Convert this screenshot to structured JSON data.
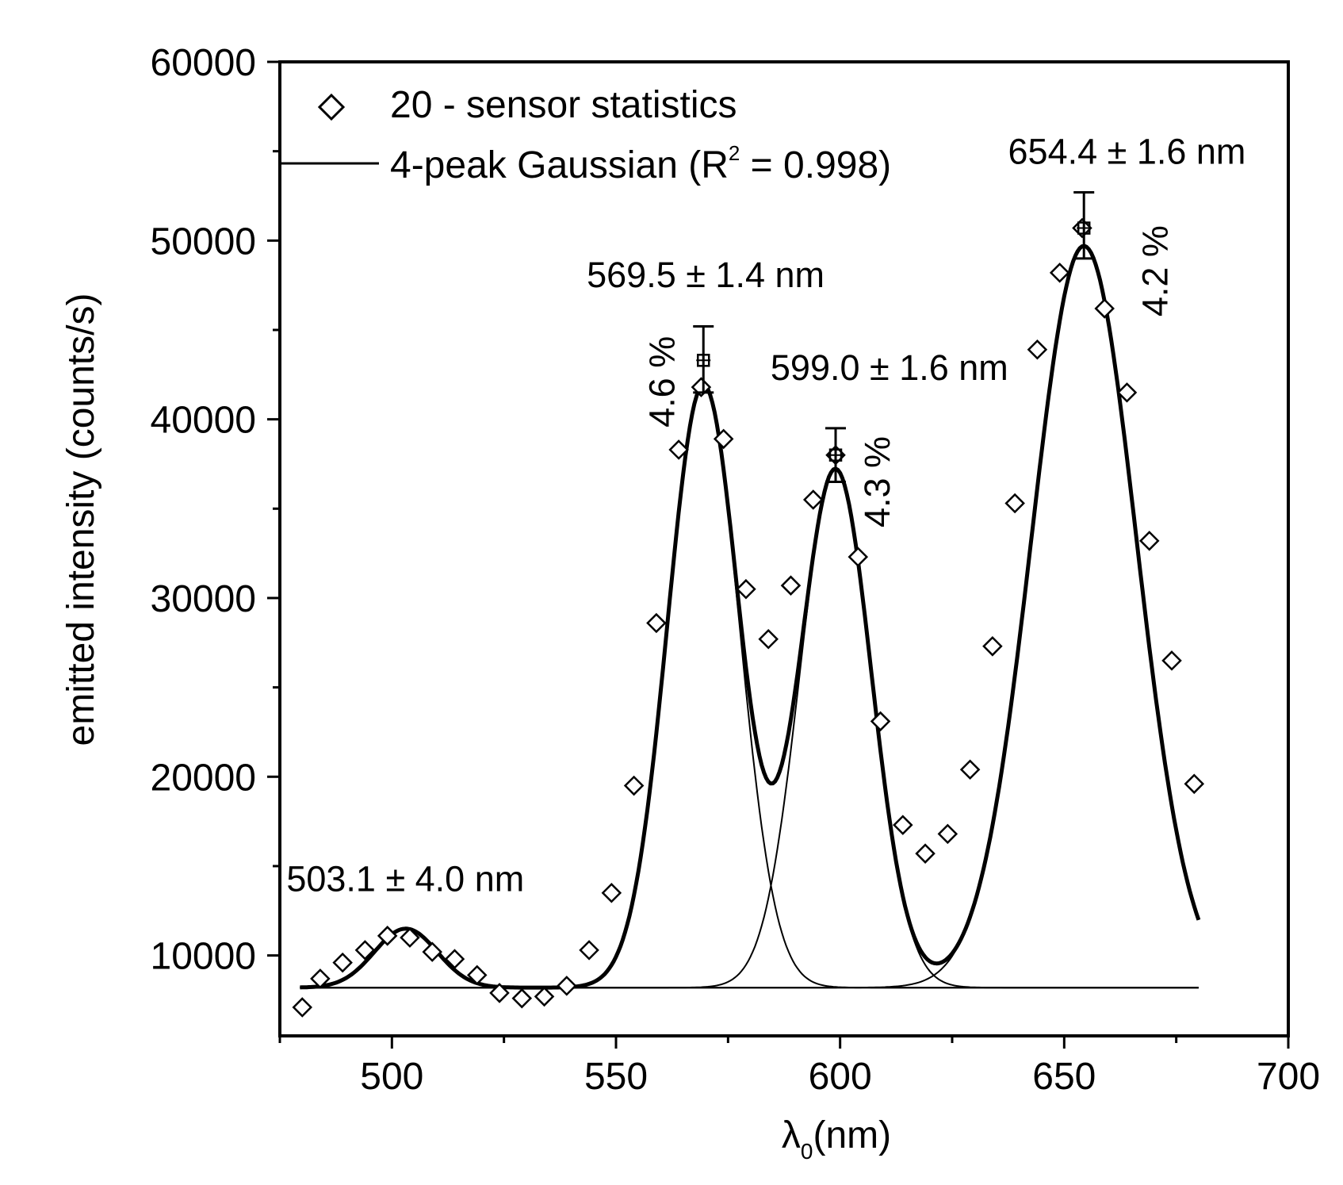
{
  "chart_data": {
    "type": "scatter",
    "title": "",
    "xlabel": {
      "symbol": "λ",
      "subscript": "0",
      "unit": "(nm)"
    },
    "ylabel": "emitted intensity (counts/s)",
    "xlim": [
      475,
      700
    ],
    "ylim": [
      5500,
      60000
    ],
    "xticks": [
      500,
      550,
      600,
      650,
      700
    ],
    "yticks": [
      10000,
      20000,
      30000,
      40000,
      50000,
      60000
    ],
    "legend": {
      "position": "top-left",
      "entries": [
        {
          "marker": "diamond",
          "label": "20 - sensor statistics"
        },
        {
          "marker": "line",
          "label_prefix": "4-peak Gaussian (R",
          "label_sup": "2",
          "label_suffix": " = 0.998)"
        }
      ]
    },
    "series": [
      {
        "name": "20 - sensor statistics",
        "marker": "diamond",
        "x": [
          480,
          484,
          489,
          494,
          499,
          504,
          509,
          514,
          519,
          524,
          529,
          534,
          539,
          544,
          549,
          554,
          559,
          564,
          569,
          574,
          579,
          584,
          589,
          594,
          599,
          604,
          609,
          614,
          619,
          624,
          629,
          634,
          639,
          644,
          649,
          654,
          659,
          664,
          669,
          674,
          679
        ],
        "y": [
          7100,
          8700,
          9600,
          10300,
          11100,
          11000,
          10200,
          9800,
          8900,
          7900,
          7600,
          7700,
          8300,
          10300,
          13500,
          19500,
          28600,
          38300,
          41800,
          38900,
          30500,
          27700,
          30700,
          35500,
          38000,
          32300,
          23100,
          17300,
          15700,
          16800,
          20400,
          27300,
          35300,
          43900,
          48200,
          50700,
          46200,
          41500,
          33200,
          26500,
          19600
        ]
      },
      {
        "name": "4-peak Gaussian (R² = 0.998)",
        "baseline": 8200,
        "peaks": [
          {
            "center": 503.1,
            "amplitude": 3300,
            "sigma": 7
          },
          {
            "center": 569.5,
            "amplitude": 33700,
            "sigma": 8
          },
          {
            "center": 599.0,
            "amplitude": 29000,
            "sigma": 8
          },
          {
            "center": 654.4,
            "amplitude": 41500,
            "sigma": 11.7
          }
        ],
        "x_range": [
          479.5,
          680
        ]
      }
    ],
    "error_bars": [
      {
        "x": 569.5,
        "y": 43300,
        "low": 41500,
        "high": 45200
      },
      {
        "x": 599.0,
        "y": 38000,
        "low": 36500,
        "high": 39500
      },
      {
        "x": 654.4,
        "y": 50700,
        "low": 49000,
        "high": 52700
      }
    ],
    "annotations": [
      {
        "text": "503.1 ± 4.0 nm",
        "x": 503,
        "y": 13600,
        "rotation": 0
      },
      {
        "text": "569.5 ± 1.4 nm",
        "x": 570,
        "y": 47400,
        "rotation": 0
      },
      {
        "text": "599.0 ± 1.6 nm",
        "x": 611,
        "y": 42200,
        "rotation": 0
      },
      {
        "text": "654.4 ± 1.6 nm",
        "x": 664,
        "y": 54300,
        "rotation": 0
      },
      {
        "text": "4.6 %",
        "x": 563,
        "y": 42100,
        "rotation": -90
      },
      {
        "text": "4.3 %",
        "x": 611,
        "y": 36500,
        "rotation": -90
      },
      {
        "text": "4.2 %",
        "x": 673,
        "y": 48300,
        "rotation": -90
      }
    ]
  }
}
